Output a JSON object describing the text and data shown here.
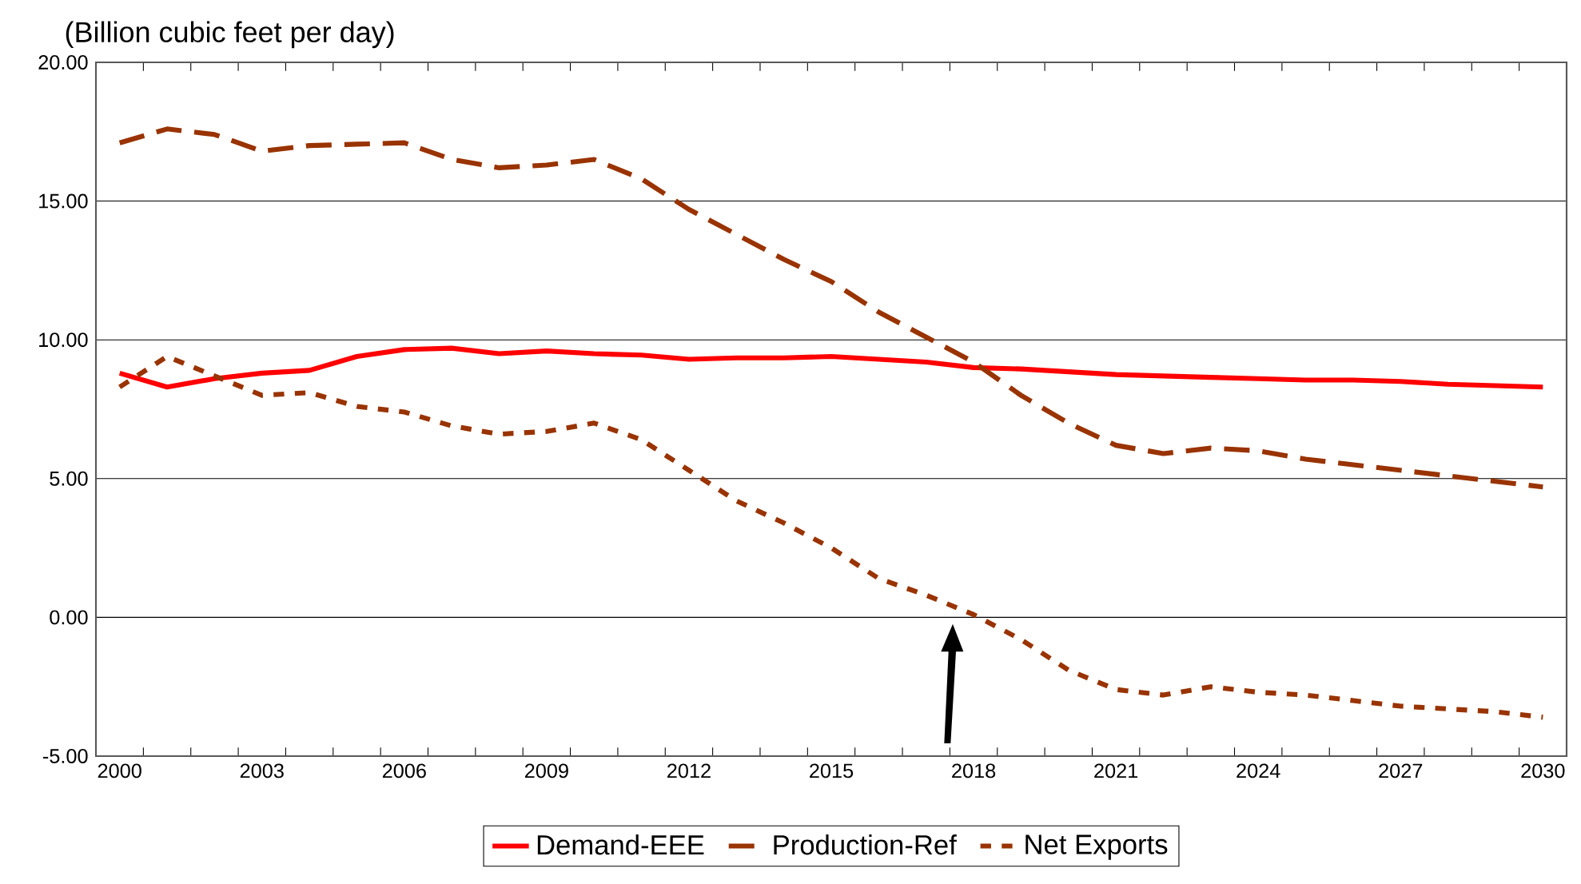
{
  "chart_data": {
    "type": "line",
    "ylabel": "(Billion cubic feet per day)",
    "categories": [
      "2000",
      null,
      null,
      "2003",
      null,
      null,
      "2006",
      null,
      null,
      "2009",
      null,
      null,
      "2012",
      null,
      null,
      "2015",
      null,
      null,
      "2018",
      null,
      null,
      "2021",
      null,
      null,
      "2024",
      null,
      null,
      "2027",
      null,
      null,
      "2030"
    ],
    "series": [
      {
        "name": "Demand-EEE",
        "color": "#ff0000",
        "line_style": "solid",
        "values": [
          8.8,
          8.3,
          8.6,
          8.8,
          8.9,
          9.4,
          9.65,
          9.7,
          9.5,
          9.6,
          9.5,
          9.45,
          9.3,
          9.35,
          9.35,
          9.4,
          9.3,
          9.2,
          9.0,
          8.95,
          8.85,
          8.75,
          8.7,
          8.65,
          8.6,
          8.55,
          8.55,
          8.5,
          8.4,
          8.35,
          8.3
        ]
      },
      {
        "name": "Production-Ref",
        "color": "#993300",
        "line_style": "dashed",
        "values": [
          17.1,
          17.6,
          17.4,
          16.8,
          17.0,
          17.05,
          17.1,
          16.5,
          16.2,
          16.3,
          16.5,
          15.8,
          14.7,
          13.8,
          12.9,
          12.1,
          11.0,
          10.1,
          9.2,
          8.0,
          7.0,
          6.2,
          5.9,
          6.1,
          6.0,
          5.7,
          5.5,
          5.3,
          5.1,
          4.9,
          4.7
        ]
      },
      {
        "name": "Net Exports",
        "color": "#993300",
        "line_style": "dotted",
        "values": [
          8.3,
          9.4,
          8.7,
          8.0,
          8.1,
          7.6,
          7.4,
          6.9,
          6.6,
          6.7,
          7.0,
          6.4,
          5.3,
          4.2,
          3.4,
          2.5,
          1.4,
          0.8,
          0.1,
          -0.8,
          -1.9,
          -2.6,
          -2.8,
          -2.5,
          -2.7,
          -2.8,
          -3.0,
          -3.2,
          -3.3,
          -3.4,
          -3.6
        ]
      }
    ],
    "ylim": [
      -5,
      20
    ],
    "yticks": [
      {
        "value": -5,
        "label": "-5.00"
      },
      {
        "value": 0,
        "label": "0.00"
      },
      {
        "value": 5,
        "label": "5.00"
      },
      {
        "value": 10,
        "label": "10.00"
      },
      {
        "value": 15,
        "label": "15.00"
      },
      {
        "value": 20,
        "label": "20.00"
      }
    ],
    "grid": "y",
    "legend": "bottom",
    "marker": "none"
  }
}
